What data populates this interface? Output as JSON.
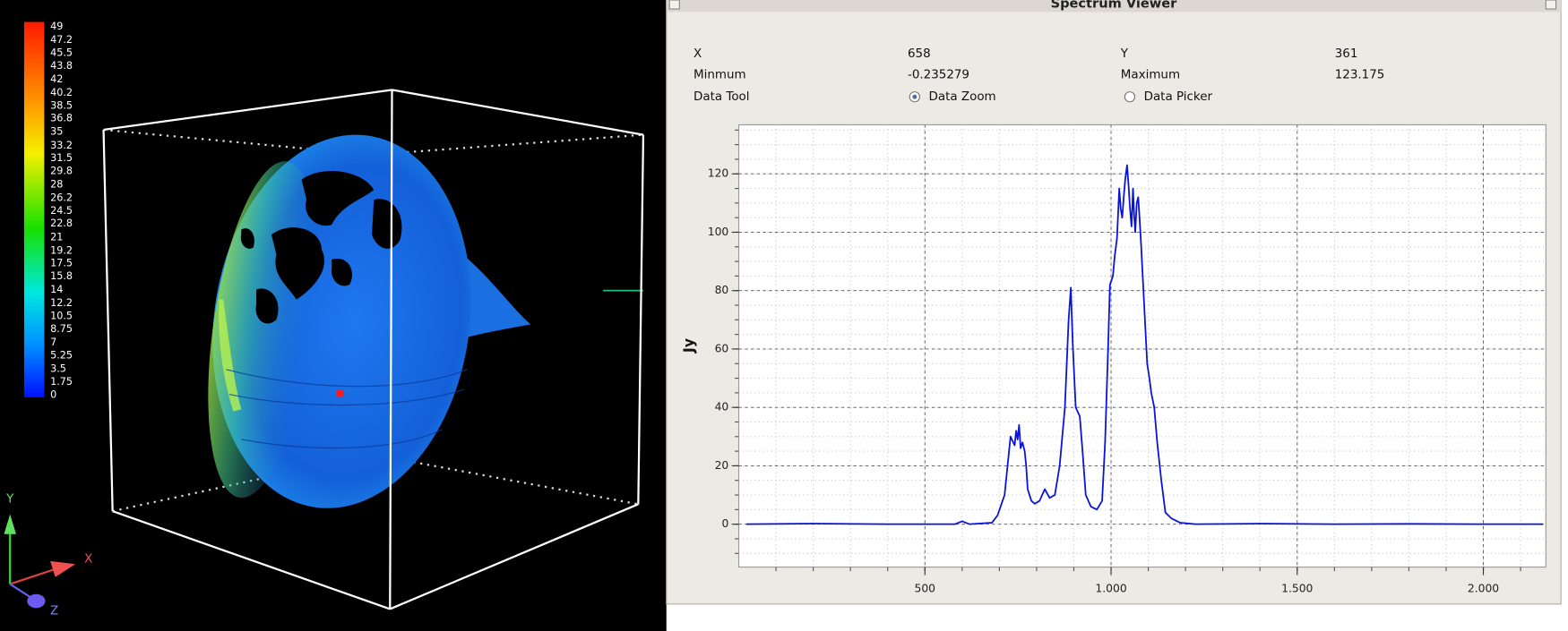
{
  "volume_view": {
    "colorbar": {
      "lim": [
        0,
        49
      ],
      "ticks": [
        49,
        47.2,
        45.5,
        43.8,
        42,
        40.2,
        38.5,
        36.8,
        35,
        33.2,
        31.5,
        29.8,
        28,
        26.2,
        24.5,
        22.8,
        21,
        19.2,
        17.5,
        15.8,
        14,
        12.2,
        10.5,
        8.75,
        7,
        5.25,
        3.5,
        1.75,
        0
      ]
    },
    "axes": {
      "y": "Y",
      "x": "X",
      "z": "Z"
    }
  },
  "spectrum_viewer": {
    "title": "Spectrum Viewer",
    "fields": [
      {
        "label": "X",
        "value": "658"
      },
      {
        "label": "Y",
        "value": "361"
      },
      {
        "label": "Minmum",
        "value": "-0.235279"
      },
      {
        "label": "Maximum",
        "value": "123.175"
      }
    ],
    "data_tool": {
      "label": "Data Tool",
      "options": [
        {
          "label": "Data Zoom",
          "selected": true
        },
        {
          "label": "Data Picker",
          "selected": false
        }
      ]
    }
  },
  "chart_data": {
    "type": "line",
    "ylabel": "Jy",
    "color": "#0a14d8",
    "x": [
      20,
      200,
      400,
      580,
      600,
      620,
      680,
      695,
      714,
      730,
      741,
      745,
      749,
      753,
      757,
      762,
      768,
      772,
      776,
      786,
      795,
      808,
      822,
      835,
      849,
      862,
      876,
      886,
      892,
      897,
      905,
      916,
      924,
      932,
      946,
      962,
      976,
      984,
      992,
      997,
      1005,
      1010,
      1016,
      1022,
      1026,
      1030,
      1034,
      1038,
      1043,
      1047,
      1051,
      1055,
      1059,
      1062,
      1065,
      1069,
      1073,
      1077,
      1081,
      1089,
      1097,
      1103,
      1108,
      1116,
      1124,
      1135,
      1146,
      1162,
      1186,
      1227,
      1400,
      1600,
      1800,
      2000,
      2160
    ],
    "values": [
      0,
      0.2,
      0,
      0,
      1,
      0,
      0.5,
      3,
      10,
      30,
      27,
      32,
      29,
      34,
      26,
      28,
      25,
      20,
      12,
      8,
      7,
      8,
      12,
      9,
      10,
      20,
      40,
      70,
      81,
      62,
      40,
      37,
      24,
      10,
      6,
      5,
      8,
      28,
      60,
      82,
      85,
      92,
      98,
      115,
      108,
      105,
      112,
      118,
      123,
      116,
      108,
      102,
      115,
      106,
      100,
      110,
      112,
      104,
      95,
      75,
      55,
      50,
      45,
      40,
      28,
      15,
      4,
      2,
      0.5,
      0,
      0.2,
      0,
      0.1,
      0,
      0
    ],
    "xlim": [
      0,
      2168
    ],
    "ylim": [
      -14.7,
      136.8
    ],
    "xticks": [
      500,
      {
        "value": 1000,
        "label": "1.000"
      },
      {
        "value": 1500,
        "label": "1.500"
      },
      {
        "value": 2000,
        "label": "2.000"
      }
    ],
    "yticks": [
      0,
      20,
      40,
      60,
      80,
      100,
      120
    ],
    "x_minor_step": 100,
    "y_minor_step": 5,
    "grid": true
  }
}
